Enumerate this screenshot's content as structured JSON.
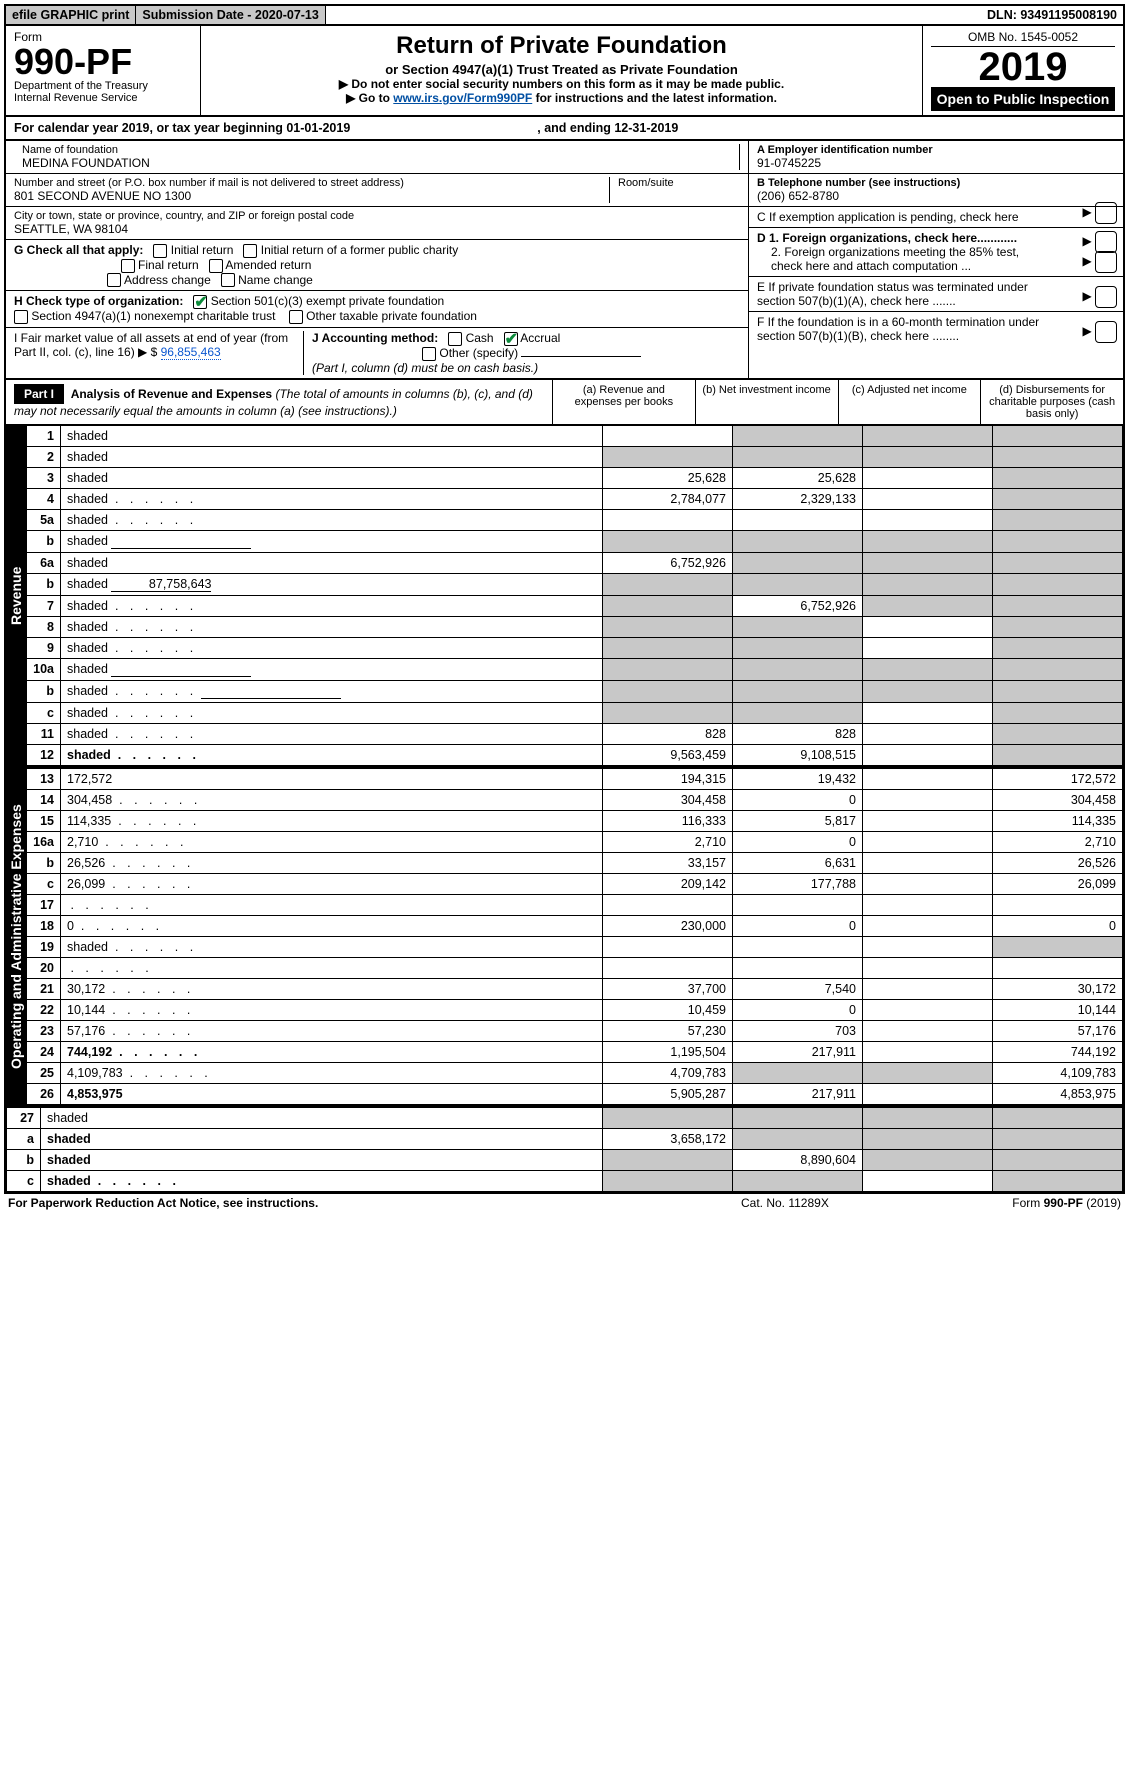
{
  "topbar": {
    "efile": "efile GRAPHIC print",
    "submission": "Submission Date - 2020-07-13",
    "dln": "DLN: 93491195008190"
  },
  "title": {
    "formword": "Form",
    "formnum": "990-PF",
    "dept": "Department of the Treasury\nInternal Revenue Service",
    "main": "Return of Private Foundation",
    "sub": "or Section 4947(a)(1) Trust Treated as Private Foundation",
    "instr1": "▶ Do not enter social security numbers on this form as it may be made public.",
    "instr2_pre": "▶ Go to ",
    "instr2_link": "www.irs.gov/Form990PF",
    "instr2_post": " for instructions and the latest information.",
    "omb": "OMB No. 1545-0052",
    "year": "2019",
    "openpub": "Open to Public Inspection"
  },
  "calrow": {
    "pre": "For calendar year 2019, or tax year beginning ",
    "begin": "01-01-2019",
    "mid": " , and ending ",
    "end": "12-31-2019"
  },
  "identity": {
    "name_label": "Name of foundation",
    "name": "MEDINA FOUNDATION",
    "addr_label": "Number and street (or P.O. box number if mail is not delivered to street address)",
    "addr": "801 SECOND AVENUE NO 1300",
    "room_label": "Room/suite",
    "city_label": "City or town, state or province, country, and ZIP or foreign postal code",
    "city": "SEATTLE, WA  98104",
    "ein_label": "A Employer identification number",
    "ein": "91-0745225",
    "tel_label": "B Telephone number (see instructions)",
    "tel": "(206) 652-8780",
    "c_label": "C If exemption application is pending, check here",
    "d1": "D 1. Foreign organizations, check here............",
    "d2": "2. Foreign organizations meeting the 85% test, check here and attach computation ...",
    "e": "E If private foundation status was terminated under section 507(b)(1)(A), check here .......",
    "f": "F If the foundation is in a 60-month termination under section 507(b)(1)(B), check here ........"
  },
  "g": {
    "label": "G Check all that apply:",
    "opts": [
      "Initial return",
      "Initial return of a former public charity",
      "Final return",
      "Amended return",
      "Address change",
      "Name change"
    ]
  },
  "h": {
    "label": "H Check type of organization:",
    "opt1": "Section 501(c)(3) exempt private foundation",
    "opt2": "Section 4947(a)(1) nonexempt charitable trust",
    "opt3": "Other taxable private foundation"
  },
  "i": {
    "label": "I Fair market value of all assets at end of year (from Part II, col. (c), line 16) ▶ $ ",
    "val": "96,855,463"
  },
  "j": {
    "label": "J Accounting method:",
    "cash": "Cash",
    "accrual": "Accrual",
    "other": "Other (specify)",
    "note": "(Part I, column (d) must be on cash basis.)"
  },
  "part1": {
    "header": "Part I",
    "title": "Analysis of Revenue and Expenses",
    "titlenote": "(The total of amounts in columns (b), (c), and (d) may not necessarily equal the amounts in column (a) (see instructions).)",
    "cols": {
      "a": "(a)  Revenue and expenses per books",
      "b": "(b)  Net investment income",
      "c": "(c)  Adjusted net income",
      "d": "(d)  Disbursements for charitable purposes (cash basis only)"
    }
  },
  "sidelab": {
    "revenue": "Revenue",
    "expenses": "Operating and Administrative Expenses"
  },
  "rows": [
    {
      "n": "1",
      "d": "shaded",
      "a": "",
      "b": "shaded",
      "c": "shaded"
    },
    {
      "n": "2",
      "d": "shaded",
      "a": "shaded",
      "b": "shaded",
      "c": "shaded",
      "bold_not": true
    },
    {
      "n": "3",
      "d": "shaded",
      "a": "25,628",
      "b": "25,628",
      "c": ""
    },
    {
      "n": "4",
      "d": "shaded",
      "a": "2,784,077",
      "b": "2,329,133",
      "c": "",
      "dots": true
    },
    {
      "n": "5a",
      "d": "shaded",
      "a": "",
      "b": "",
      "c": "",
      "dots": true
    },
    {
      "n": "b",
      "d": "shaded",
      "a": "shaded",
      "b": "shaded",
      "c": "shaded",
      "inline_box": true
    },
    {
      "n": "6a",
      "d": "shaded",
      "a": "6,752,926",
      "b": "shaded",
      "c": "shaded"
    },
    {
      "n": "b",
      "d": "shaded",
      "a": "shaded",
      "b": "shaded",
      "c": "shaded",
      "inline_val": "87,758,643"
    },
    {
      "n": "7",
      "d": "shaded",
      "a": "shaded",
      "b": "6,752,926",
      "c": "shaded",
      "dots": true
    },
    {
      "n": "8",
      "d": "shaded",
      "a": "shaded",
      "b": "shaded",
      "c": "",
      "dots": true
    },
    {
      "n": "9",
      "d": "shaded",
      "a": "shaded",
      "b": "shaded",
      "c": "",
      "dots": true
    },
    {
      "n": "10a",
      "d": "shaded",
      "a": "shaded",
      "b": "shaded",
      "c": "shaded",
      "inline_box": true
    },
    {
      "n": "b",
      "d": "shaded",
      "a": "shaded",
      "b": "shaded",
      "c": "shaded",
      "dots": true,
      "inline_box": true
    },
    {
      "n": "c",
      "d": "shaded",
      "a": "shaded",
      "b": "shaded",
      "c": "",
      "dots": true
    },
    {
      "n": "11",
      "d": "shaded",
      "a": "828",
      "b": "828",
      "c": "",
      "dots": true
    },
    {
      "n": "12",
      "d": "shaded",
      "a": "9,563,459",
      "b": "9,108,515",
      "c": "",
      "bold": true,
      "dots": true
    }
  ],
  "exp_rows": [
    {
      "n": "13",
      "d": "172,572",
      "a": "194,315",
      "b": "19,432",
      "c": ""
    },
    {
      "n": "14",
      "d": "304,458",
      "a": "304,458",
      "b": "0",
      "c": "",
      "dots": true
    },
    {
      "n": "15",
      "d": "114,335",
      "a": "116,333",
      "b": "5,817",
      "c": "",
      "dots": true
    },
    {
      "n": "16a",
      "d": "2,710",
      "a": "2,710",
      "b": "0",
      "c": "",
      "dots": true
    },
    {
      "n": "b",
      "d": "26,526",
      "a": "33,157",
      "b": "6,631",
      "c": "",
      "dots": true
    },
    {
      "n": "c",
      "d": "26,099",
      "a": "209,142",
      "b": "177,788",
      "c": "",
      "dots": true
    },
    {
      "n": "17",
      "d": "",
      "a": "",
      "b": "",
      "c": "",
      "dots": true
    },
    {
      "n": "18",
      "d": "0",
      "a": "230,000",
      "b": "0",
      "c": "",
      "dots": true
    },
    {
      "n": "19",
      "d": "shaded",
      "a": "",
      "b": "",
      "c": "",
      "dots": true
    },
    {
      "n": "20",
      "d": "",
      "a": "",
      "b": "",
      "c": "",
      "dots": true
    },
    {
      "n": "21",
      "d": "30,172",
      "a": "37,700",
      "b": "7,540",
      "c": "",
      "dots": true
    },
    {
      "n": "22",
      "d": "10,144",
      "a": "10,459",
      "b": "0",
      "c": "",
      "dots": true
    },
    {
      "n": "23",
      "d": "57,176",
      "a": "57,230",
      "b": "703",
      "c": "",
      "dots": true
    },
    {
      "n": "24",
      "d": "744,192",
      "a": "1,195,504",
      "b": "217,911",
      "c": "",
      "bold": true,
      "dots": true
    },
    {
      "n": "25",
      "d": "4,109,783",
      "a": "4,709,783",
      "b": "shaded",
      "c": "shaded",
      "dots": true
    },
    {
      "n": "26",
      "d": "4,853,975",
      "a": "5,905,287",
      "b": "217,911",
      "c": "",
      "bold": true
    }
  ],
  "rows27": [
    {
      "n": "27",
      "d": "shaded",
      "a": "shaded",
      "b": "shaded",
      "c": "shaded"
    },
    {
      "n": "a",
      "d": "shaded",
      "a": "3,658,172",
      "b": "shaded",
      "c": "shaded",
      "bold": true
    },
    {
      "n": "b",
      "d": "shaded",
      "a": "shaded",
      "b": "8,890,604",
      "c": "shaded",
      "bold": true
    },
    {
      "n": "c",
      "d": "shaded",
      "a": "shaded",
      "b": "shaded",
      "c": "",
      "bold": true,
      "dots": true
    }
  ],
  "footer": {
    "left": "For Paperwork Reduction Act Notice, see instructions.",
    "mid": "Cat. No. 11289X",
    "right": "Form 990-PF (2019)"
  }
}
